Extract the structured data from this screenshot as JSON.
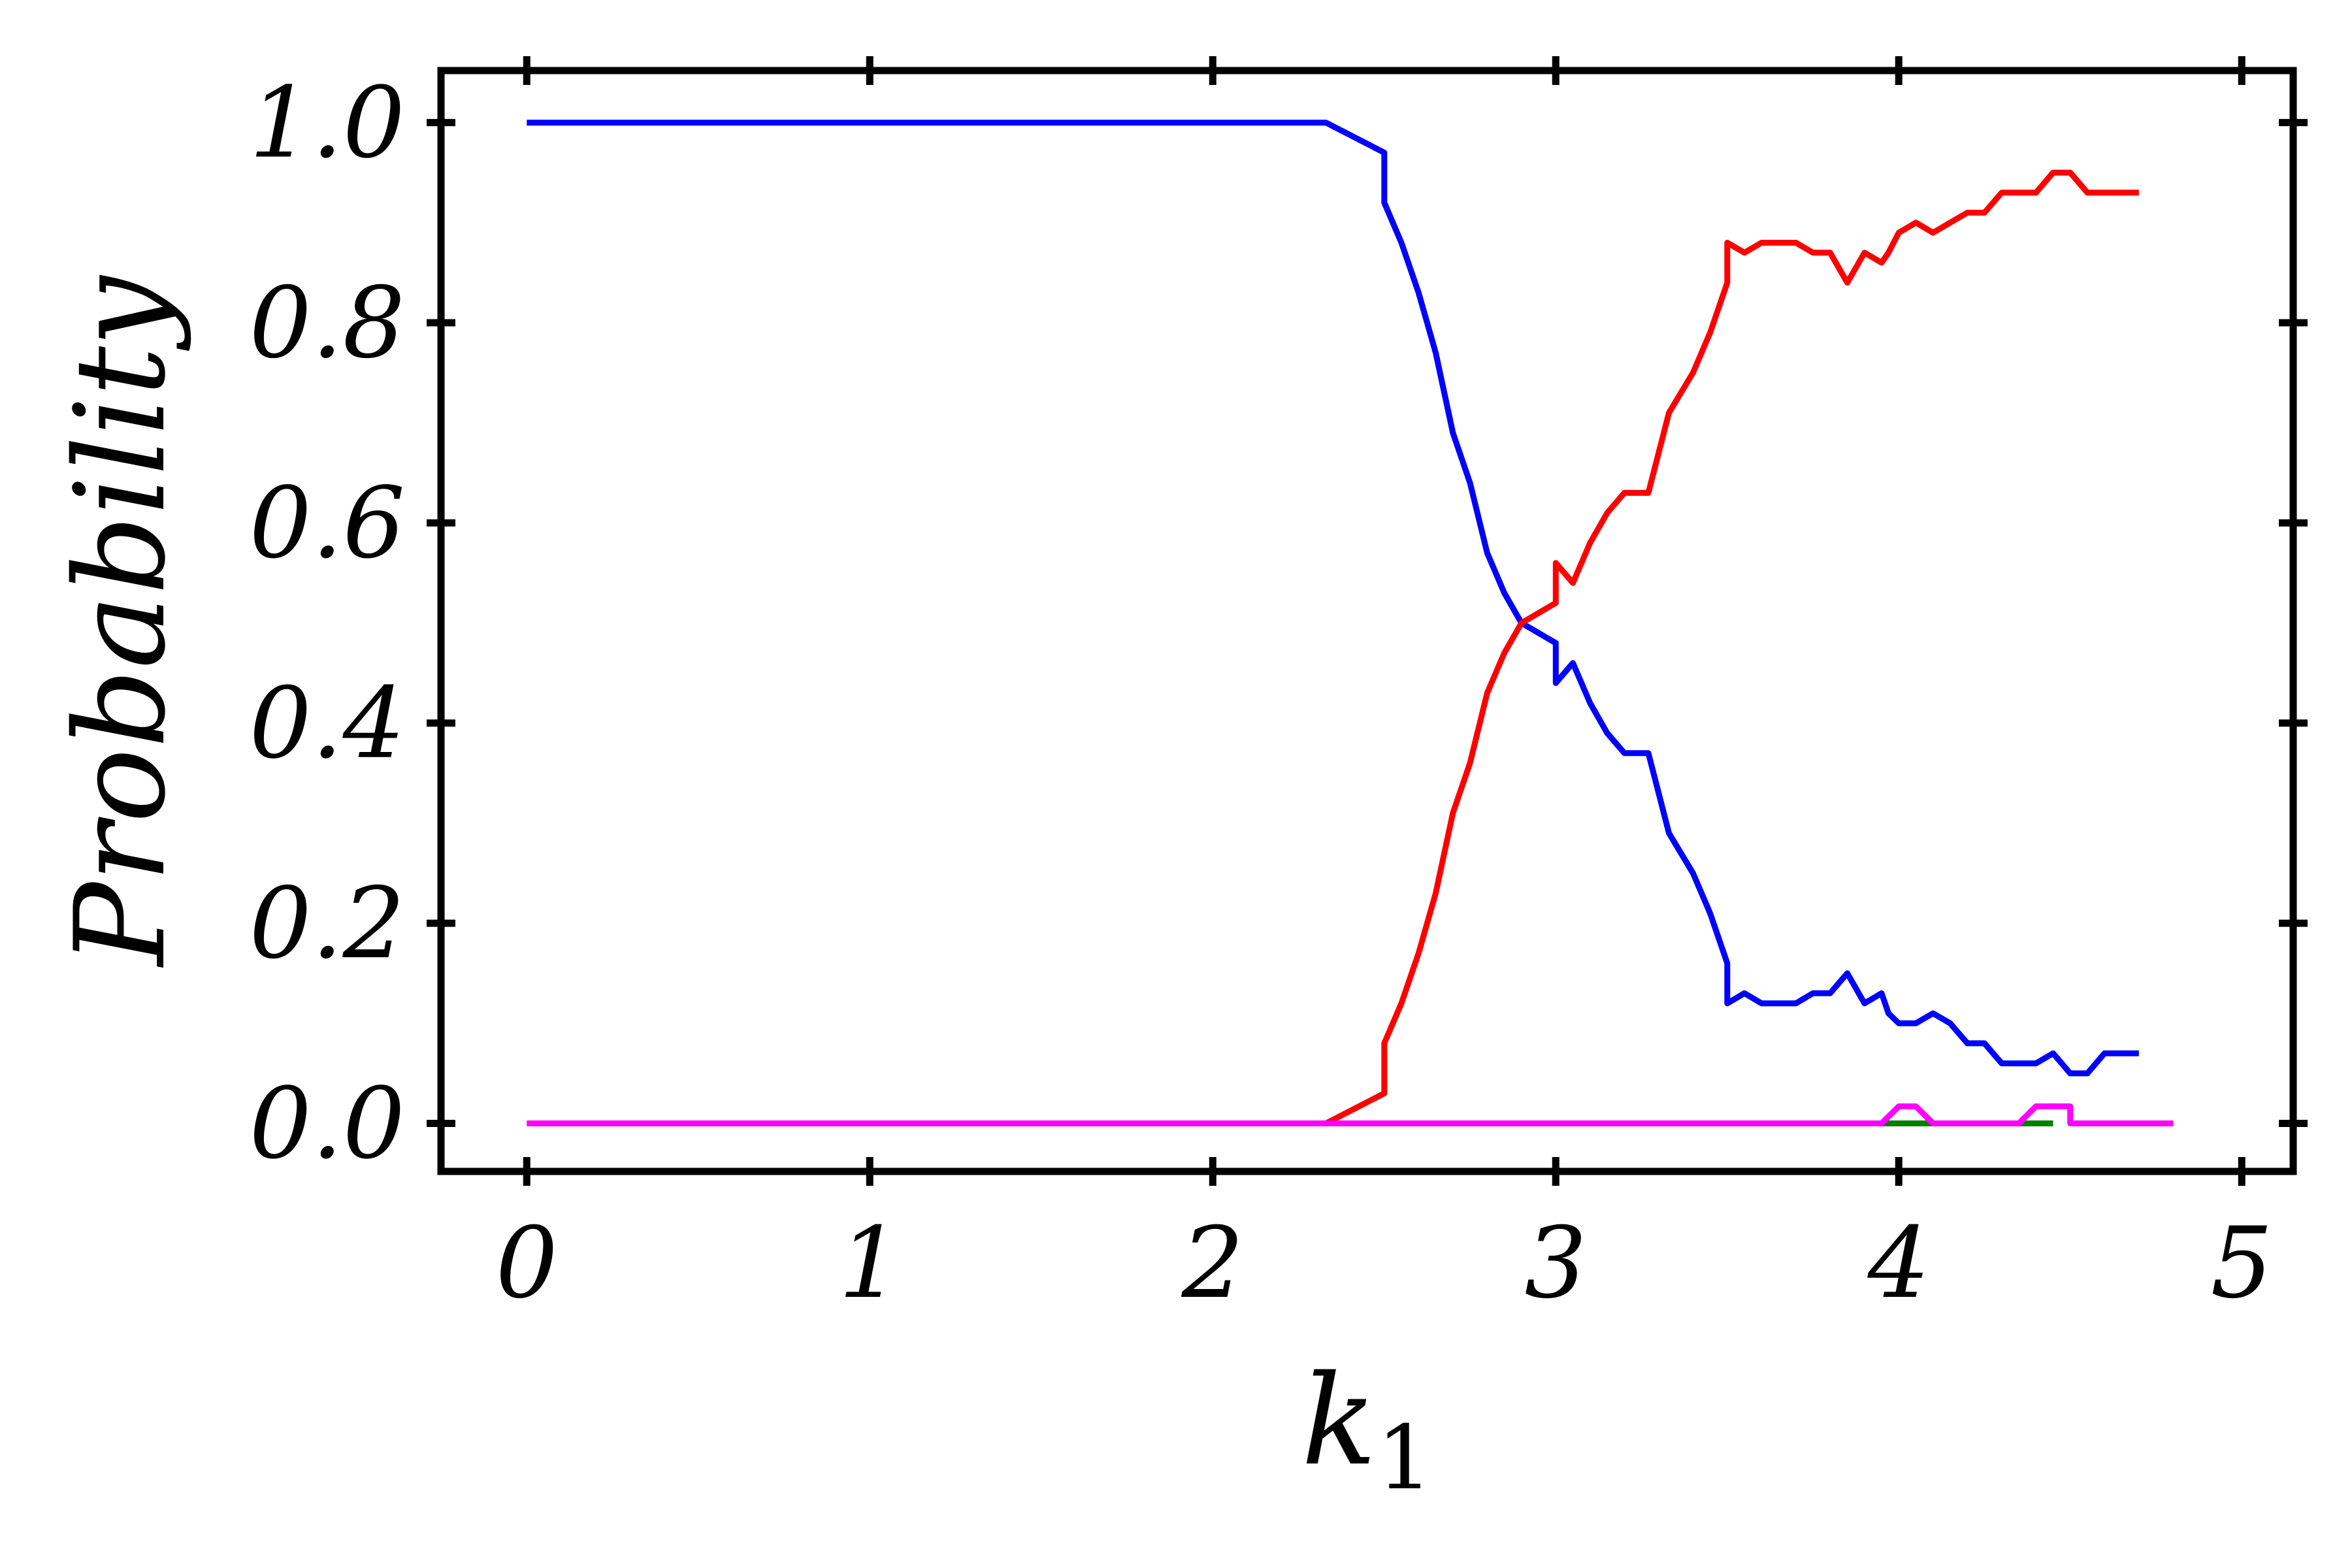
{
  "chart_data": {
    "type": "line",
    "title": "",
    "xlabel": "k",
    "xlabel_subscript": "1",
    "ylabel": "Probability",
    "xlim": [
      -0.25,
      5.15
    ],
    "ylim": [
      -0.048,
      1.052
    ],
    "xticks": [
      0,
      1,
      2,
      3,
      4,
      5
    ],
    "xtick_labels": [
      "0",
      "1",
      "2",
      "3",
      "4",
      "5"
    ],
    "yticks": [
      0.0,
      0.2,
      0.4,
      0.6,
      0.8,
      1.0
    ],
    "ytick_labels": [
      "0.0",
      "0.2",
      "0.4",
      "0.6",
      "0.8",
      "1.0"
    ],
    "grid": false,
    "legend": "none",
    "series": [
      {
        "color": "#0000ff",
        "points": [
          [
            0,
            1.0
          ],
          [
            2.33,
            1.0
          ],
          [
            2.5,
            0.97
          ],
          [
            2.5,
            0.92
          ],
          [
            2.55,
            0.88
          ],
          [
            2.6,
            0.83
          ],
          [
            2.65,
            0.77
          ],
          [
            2.7,
            0.69
          ],
          [
            2.75,
            0.64
          ],
          [
            2.8,
            0.57
          ],
          [
            2.85,
            0.53
          ],
          [
            2.9,
            0.5
          ],
          [
            2.95,
            0.49
          ],
          [
            3.0,
            0.48
          ],
          [
            3.0,
            0.44
          ],
          [
            3.05,
            0.46
          ],
          [
            3.1,
            0.42
          ],
          [
            3.15,
            0.39
          ],
          [
            3.2,
            0.37
          ],
          [
            3.27,
            0.37
          ],
          [
            3.33,
            0.29
          ],
          [
            3.4,
            0.25
          ],
          [
            3.45,
            0.21
          ],
          [
            3.5,
            0.16
          ],
          [
            3.5,
            0.12
          ],
          [
            3.55,
            0.13
          ],
          [
            3.6,
            0.12
          ],
          [
            3.7,
            0.12
          ],
          [
            3.75,
            0.13
          ],
          [
            3.8,
            0.13
          ],
          [
            3.85,
            0.15
          ],
          [
            3.9,
            0.12
          ],
          [
            3.95,
            0.13
          ],
          [
            3.97,
            0.11
          ],
          [
            4.0,
            0.1
          ],
          [
            4.05,
            0.1
          ],
          [
            4.1,
            0.11
          ],
          [
            4.15,
            0.1
          ],
          [
            4.2,
            0.08
          ],
          [
            4.25,
            0.08
          ],
          [
            4.3,
            0.06
          ],
          [
            4.4,
            0.06
          ],
          [
            4.45,
            0.07
          ],
          [
            4.5,
            0.05
          ],
          [
            4.55,
            0.05
          ],
          [
            4.6,
            0.07
          ],
          [
            4.7,
            0.07
          ]
        ]
      },
      {
        "color": "#ff0000",
        "points": [
          [
            2.33,
            0.0
          ],
          [
            2.5,
            0.03
          ],
          [
            2.5,
            0.08
          ],
          [
            2.55,
            0.12
          ],
          [
            2.6,
            0.17
          ],
          [
            2.65,
            0.23
          ],
          [
            2.7,
            0.31
          ],
          [
            2.75,
            0.36
          ],
          [
            2.8,
            0.43
          ],
          [
            2.85,
            0.47
          ],
          [
            2.9,
            0.5
          ],
          [
            2.95,
            0.51
          ],
          [
            3.0,
            0.52
          ],
          [
            3.0,
            0.56
          ],
          [
            3.05,
            0.54
          ],
          [
            3.1,
            0.58
          ],
          [
            3.15,
            0.61
          ],
          [
            3.2,
            0.63
          ],
          [
            3.27,
            0.63
          ],
          [
            3.33,
            0.71
          ],
          [
            3.4,
            0.75
          ],
          [
            3.45,
            0.79
          ],
          [
            3.5,
            0.84
          ],
          [
            3.5,
            0.88
          ],
          [
            3.55,
            0.87
          ],
          [
            3.6,
            0.88
          ],
          [
            3.7,
            0.88
          ],
          [
            3.75,
            0.87
          ],
          [
            3.8,
            0.87
          ],
          [
            3.85,
            0.84
          ],
          [
            3.9,
            0.87
          ],
          [
            3.95,
            0.86
          ],
          [
            3.97,
            0.87
          ],
          [
            4.0,
            0.89
          ],
          [
            4.05,
            0.9
          ],
          [
            4.1,
            0.89
          ],
          [
            4.15,
            0.9
          ],
          [
            4.2,
            0.91
          ],
          [
            4.25,
            0.91
          ],
          [
            4.3,
            0.93
          ],
          [
            4.4,
            0.93
          ],
          [
            4.45,
            0.95
          ],
          [
            4.5,
            0.95
          ],
          [
            4.55,
            0.93
          ],
          [
            4.6,
            0.93
          ],
          [
            4.7,
            0.93
          ]
        ]
      },
      {
        "color": "#008000",
        "points": [
          [
            3.95,
            0.0
          ],
          [
            3.97,
            0.0
          ],
          [
            4.08,
            0.0
          ],
          [
            4.1,
            0.0
          ],
          [
            4.4,
            0.0
          ],
          [
            4.45,
            0.0
          ]
        ]
      },
      {
        "color": "#ff00ff",
        "points": [
          [
            0,
            0.0
          ],
          [
            3.95,
            0.0
          ],
          [
            4.0,
            0.017
          ],
          [
            4.05,
            0.017
          ],
          [
            4.1,
            0.0
          ],
          [
            4.35,
            0.0
          ],
          [
            4.4,
            0.017
          ],
          [
            4.5,
            0.017
          ],
          [
            4.5,
            0.0
          ],
          [
            4.8,
            0.0
          ]
        ]
      }
    ]
  }
}
